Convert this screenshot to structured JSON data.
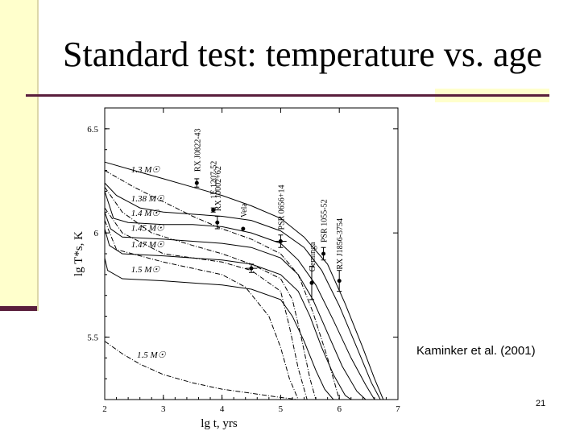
{
  "slide": {
    "title": "Standard test: temperature vs. age",
    "credit": "Kaminker et al. (2001)",
    "page_number": "21"
  },
  "colors": {
    "accent": "#5a1e3c",
    "sidebar": "#ffffcc"
  },
  "chart_data": {
    "type": "line",
    "xlabel": "lg t,  yrs",
    "ylabel": "lg T*s,  K",
    "xlim": [
      2,
      7
    ],
    "ylim": [
      5.2,
      6.6
    ],
    "x_ticks": [
      "2",
      "3",
      "4",
      "5",
      "6",
      "7"
    ],
    "y_ticks": [
      "5.5",
      "6",
      "6.5"
    ],
    "series": [
      {
        "name": "1.3 M☉",
        "style": "solid",
        "x": [
          2,
          2.5,
          3,
          3.5,
          4,
          4.5,
          5,
          5.4,
          5.8,
          6.1,
          6.4,
          6.6,
          6.75
        ],
        "y": [
          6.34,
          6.3,
          6.26,
          6.22,
          6.18,
          6.13,
          6.07,
          5.98,
          5.85,
          5.66,
          5.45,
          5.3,
          5.2
        ]
      },
      {
        "name": "1.38 M☉",
        "style": "solid",
        "x": [
          2,
          2.2,
          2.6,
          3,
          3.5,
          4,
          4.5,
          5,
          5.4,
          5.7,
          6.0,
          6.3,
          6.55,
          6.7
        ],
        "y": [
          6.24,
          6.18,
          6.12,
          6.1,
          6.09,
          6.08,
          6.06,
          6.01,
          5.93,
          5.82,
          5.65,
          5.45,
          5.28,
          5.2
        ]
      },
      {
        "name": "1.4 M☉",
        "style": "solid",
        "x": [
          2,
          2.15,
          2.4,
          3,
          3.5,
          4,
          4.5,
          5,
          5.3,
          5.6,
          5.9,
          6.2,
          6.45,
          6.6
        ],
        "y": [
          6.2,
          6.07,
          6.05,
          6.04,
          6.04,
          6.03,
          6.0,
          5.95,
          5.87,
          5.75,
          5.58,
          5.4,
          5.27,
          5.2
        ]
      },
      {
        "name": "1.45 M☉",
        "style": "solid",
        "x": [
          2,
          2.1,
          2.3,
          3,
          3.5,
          4,
          4.5,
          5,
          5.3,
          5.55,
          5.8,
          6.05,
          6.3,
          6.45
        ],
        "y": [
          6.1,
          6.02,
          5.98,
          5.97,
          5.96,
          5.95,
          5.93,
          5.88,
          5.8,
          5.68,
          5.52,
          5.36,
          5.24,
          5.2
        ]
      },
      {
        "name": "1.47 M☉",
        "style": "solid",
        "x": [
          2,
          2.08,
          2.3,
          3,
          3.5,
          4,
          4.5,
          5,
          5.3,
          5.5,
          5.7,
          5.9,
          6.1,
          6.2
        ],
        "y": [
          6.02,
          5.94,
          5.9,
          5.89,
          5.88,
          5.87,
          5.85,
          5.8,
          5.72,
          5.6,
          5.45,
          5.32,
          5.22,
          5.2
        ]
      },
      {
        "name": "1.5 M☉",
        "style": "solid",
        "x": [
          2,
          2.05,
          2.3,
          3,
          3.5,
          4,
          4.5,
          5,
          5.2,
          5.4,
          5.6,
          5.75,
          5.9,
          6.0
        ],
        "y": [
          5.88,
          5.82,
          5.78,
          5.77,
          5.76,
          5.75,
          5.73,
          5.68,
          5.6,
          5.48,
          5.34,
          5.25,
          5.2,
          5.2
        ]
      },
      {
        "name": "1.5 M☉",
        "style": "dashdot",
        "x": [
          2,
          2.3,
          2.6,
          3,
          3.5,
          4,
          4.5,
          5,
          5.3,
          5.5
        ],
        "y": [
          5.48,
          5.42,
          5.37,
          5.32,
          5.28,
          5.25,
          5.23,
          5.21,
          5.2,
          5.2
        ]
      },
      {
        "name": "",
        "style": "dashdot",
        "x": [
          2,
          2.5,
          3,
          3.5,
          4,
          4.5,
          5,
          5.3,
          5.55,
          5.8,
          6.0
        ],
        "y": [
          6.3,
          6.22,
          6.15,
          6.08,
          6.02,
          5.97,
          5.9,
          5.8,
          5.62,
          5.4,
          5.2
        ]
      },
      {
        "name": "",
        "style": "dashdot",
        "x": [
          2,
          2.3,
          2.8,
          3.5,
          4,
          4.5,
          5,
          5.2,
          5.35,
          5.5,
          5.6
        ],
        "y": [
          6.22,
          6.1,
          6.0,
          5.94,
          5.9,
          5.85,
          5.78,
          5.68,
          5.5,
          5.3,
          5.2
        ]
      },
      {
        "name": "",
        "style": "dashdot",
        "x": [
          2,
          2.3,
          3,
          4,
          4.5,
          5,
          5.15,
          5.3,
          5.45
        ],
        "y": [
          6.12,
          6.0,
          5.9,
          5.86,
          5.82,
          5.72,
          5.55,
          5.35,
          5.2
        ]
      },
      {
        "name": "",
        "style": "dashdot",
        "x": [
          2,
          2.2,
          3,
          4,
          4.4,
          4.8,
          5.0,
          5.15,
          5.3
        ],
        "y": [
          6.06,
          5.92,
          5.86,
          5.8,
          5.74,
          5.6,
          5.45,
          5.3,
          5.2
        ]
      }
    ],
    "observations": [
      {
        "name": "RX J0822-43",
        "x": 3.57,
        "y": 6.24,
        "xerr": 0,
        "yerr": 0.02
      },
      {
        "name": "1E 1207-52",
        "x": 3.85,
        "y": 6.11,
        "xerr": 0,
        "yerr": 0.01
      },
      {
        "name": "RX J0002+62",
        "x": 3.92,
        "y": 6.05,
        "xerr": 0,
        "yerr": 0.03
      },
      {
        "name": "Vela",
        "x": 4.36,
        "y": 6.02,
        "xerr": 0,
        "yerr": 0
      },
      {
        "name": "PSR 0656+14",
        "x": 5.0,
        "y": 5.96,
        "xerr": 0.1,
        "yerr": 0.03
      },
      {
        "name": "Geminga",
        "x": 5.53,
        "y": 5.76,
        "xerr": 0,
        "yerr": 0.08
      },
      {
        "name": "PSR 1055-52",
        "x": 5.73,
        "y": 5.9,
        "xerr": 0,
        "yerr": 0.03
      },
      {
        "name": "RX J1856-3754",
        "x": 6.0,
        "y": 5.77,
        "xerr": 0,
        "yerr": 0.05
      },
      {
        "name": "",
        "x": 4.5,
        "y": 5.83,
        "xerr": 0.1,
        "yerr": 0.02
      }
    ]
  }
}
